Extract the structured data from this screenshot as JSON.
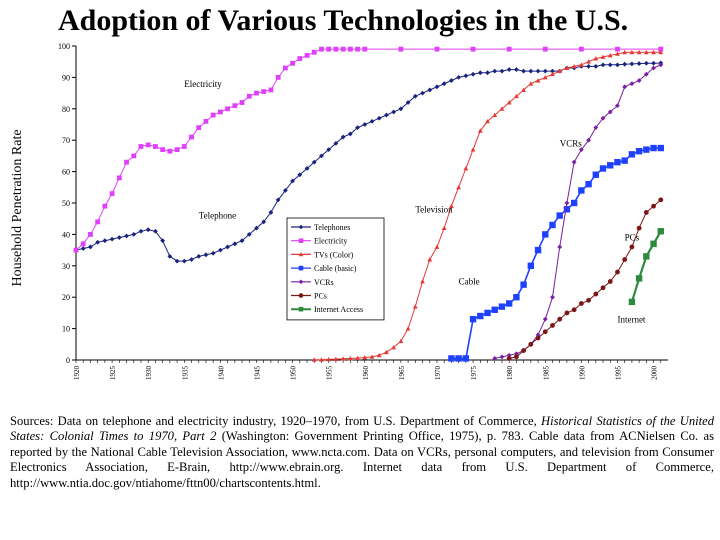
{
  "title": "Adoption of Various Technologies in the U.S.",
  "chart_data": {
    "type": "line",
    "ylabel": "Household Penetration Rate",
    "xlabel": "",
    "xlim": [
      1920,
      2002
    ],
    "ylim": [
      0,
      100
    ],
    "yticks": [
      "0",
      "10",
      "20",
      "30",
      "40",
      "50",
      "60",
      "70",
      "80",
      "90",
      "100"
    ],
    "xticks": [
      "1920",
      "1925",
      "1930",
      "1935",
      "1940",
      "1945",
      "1950",
      "1955",
      "1960",
      "1965",
      "1970",
      "1975",
      "1980",
      "1985",
      "1990",
      "1995",
      "2000"
    ],
    "legend_placement": "center",
    "grid": false,
    "series": [
      {
        "name": "Telephones",
        "color": "#1a237e",
        "marker": "diamond",
        "x": [
          1920,
          1921,
          1922,
          1923,
          1924,
          1925,
          1926,
          1927,
          1928,
          1929,
          1930,
          1931,
          1932,
          1933,
          1934,
          1935,
          1936,
          1937,
          1938,
          1939,
          1940,
          1941,
          1942,
          1943,
          1944,
          1945,
          1946,
          1947,
          1948,
          1949,
          1950,
          1951,
          1952,
          1953,
          1954,
          1955,
          1956,
          1957,
          1958,
          1959,
          1960,
          1961,
          1962,
          1963,
          1964,
          1965,
          1966,
          1967,
          1968,
          1969,
          1970,
          1971,
          1972,
          1973,
          1974,
          1975,
          1976,
          1977,
          1978,
          1979,
          1980,
          1981,
          1982,
          1983,
          1984,
          1985,
          1986,
          1987,
          1988,
          1989,
          1990,
          1991,
          1992,
          1993,
          1994,
          1995,
          1996,
          1997,
          1998,
          1999,
          2000,
          2001
        ],
        "y": [
          35,
          35.5,
          36,
          37.5,
          38,
          38.5,
          39,
          39.5,
          40,
          41,
          41.5,
          41,
          38,
          33,
          31.5,
          31.5,
          32,
          33,
          33.5,
          34,
          35,
          36,
          37,
          38,
          40,
          42,
          44,
          47,
          51,
          54,
          57,
          59,
          61,
          63,
          65,
          67,
          69,
          71,
          72,
          74,
          75,
          76,
          77,
          78,
          79,
          80,
          82,
          84,
          85,
          86,
          87,
          88,
          89,
          90,
          90.5,
          91,
          91.5,
          91.5,
          92,
          92,
          92.5,
          92.5,
          92,
          92,
          92,
          92,
          92,
          92,
          93,
          93,
          93.5,
          93.5,
          93.5,
          94,
          94,
          94,
          94.2,
          94.3,
          94.4,
          94.5,
          94.5,
          94.6
        ]
      },
      {
        "name": "Electricity",
        "color": "#e040fb",
        "marker": "square",
        "x": [
          1920,
          1921,
          1922,
          1923,
          1924,
          1925,
          1926,
          1927,
          1928,
          1929,
          1930,
          1931,
          1932,
          1933,
          1934,
          1935,
          1936,
          1937,
          1938,
          1939,
          1940,
          1941,
          1942,
          1943,
          1944,
          1945,
          1946,
          1947,
          1948,
          1949,
          1950,
          1951,
          1952,
          1953,
          1954,
          1955,
          1956,
          1957,
          1958,
          1959,
          1960,
          1965,
          1970,
          1975,
          1980,
          1985,
          1990,
          1995,
          2001
        ],
        "y": [
          35,
          37,
          40,
          44,
          49,
          53,
          58,
          63,
          65,
          68,
          68.5,
          68,
          67,
          66.5,
          67,
          68,
          71,
          74,
          76,
          78,
          79,
          80,
          81,
          82,
          84,
          85,
          85.5,
          86,
          90,
          93,
          94.5,
          96,
          97,
          98,
          99,
          99,
          99,
          99,
          99,
          99,
          99,
          99,
          99,
          99,
          99,
          99,
          99,
          99,
          99
        ]
      },
      {
        "name": "TVs (Color)",
        "color": "#e53935",
        "marker": "triangle",
        "x": [
          1953,
          1954,
          1955,
          1956,
          1957,
          1958,
          1959,
          1960,
          1961,
          1962,
          1963,
          1964,
          1965,
          1966,
          1967,
          1968,
          1969,
          1970,
          1971,
          1972,
          1973,
          1974,
          1975,
          1976,
          1977,
          1978,
          1979,
          1980,
          1981,
          1982,
          1983,
          1984,
          1985,
          1986,
          1987,
          1988,
          1989,
          1990,
          1991,
          1992,
          1993,
          1994,
          1995,
          1996,
          1997,
          1998,
          1999,
          2000,
          2001
        ],
        "y": [
          0.1,
          0.1,
          0.2,
          0.3,
          0.4,
          0.5,
          0.6,
          0.8,
          1,
          1.5,
          2.5,
          4,
          6,
          10,
          17,
          25,
          32,
          36,
          42,
          49,
          55,
          61,
          67,
          73,
          76,
          78,
          80,
          82,
          84,
          86,
          88,
          89,
          90,
          91,
          92,
          93,
          93.5,
          94,
          95,
          96,
          96.5,
          97,
          97.5,
          98,
          98,
          98,
          98,
          98,
          98
        ]
      },
      {
        "name": "Cable (basic)",
        "color": "#1e40ff",
        "marker": "square",
        "x": [
          1972,
          1973,
          1974,
          1975,
          1976,
          1977,
          1978,
          1979,
          1980,
          1981,
          1982,
          1983,
          1984,
          1985,
          1986,
          1987,
          1988,
          1989,
          1990,
          1991,
          1992,
          1993,
          1994,
          1995,
          1996,
          1997,
          1998,
          1999,
          2000,
          2001
        ],
        "y": [
          0.5,
          0.5,
          0.5,
          13,
          14,
          15,
          16,
          17,
          18,
          20,
          24,
          30,
          35,
          40,
          43,
          46,
          48,
          50,
          54,
          56,
          59,
          61,
          62,
          63,
          63.5,
          65.5,
          66.5,
          67,
          67.5,
          67.5
        ]
      },
      {
        "name": "VCRs",
        "color": "#7b1fa2",
        "marker": "diamond",
        "x": [
          1978,
          1979,
          1980,
          1981,
          1982,
          1983,
          1984,
          1985,
          1986,
          1987,
          1988,
          1989,
          1990,
          1991,
          1992,
          1993,
          1994,
          1995,
          1996,
          1997,
          1998,
          1999,
          2000,
          2001
        ],
        "y": [
          0.5,
          1,
          1.5,
          2,
          3,
          5,
          8,
          13,
          20,
          36,
          50,
          63,
          67,
          70,
          74,
          77,
          79,
          81,
          87,
          88,
          89,
          91,
          93,
          94
        ]
      },
      {
        "name": "PCs",
        "color": "#7b1616",
        "marker": "circle",
        "x": [
          1980,
          1981,
          1982,
          1983,
          1984,
          1985,
          1986,
          1987,
          1988,
          1989,
          1990,
          1991,
          1992,
          1993,
          1994,
          1995,
          1996,
          1997,
          1998,
          1999,
          2000,
          2001
        ],
        "y": [
          0.5,
          1,
          3,
          5,
          7,
          9,
          11,
          13,
          15,
          16,
          18,
          19,
          21,
          23,
          25,
          28,
          32,
          36,
          42,
          47,
          49,
          51
        ]
      },
      {
        "name": "Internet Access",
        "color": "#2e8b3e",
        "marker": "square",
        "x": [
          1997,
          1998,
          1999,
          2000,
          2001
        ],
        "y": [
          18.5,
          26,
          33,
          37,
          41
        ]
      }
    ],
    "annotations": [
      {
        "text": "Electricity",
        "x": 1935,
        "y": 87
      },
      {
        "text": "Telephone",
        "x": 1937,
        "y": 45
      },
      {
        "text": "Television",
        "x": 1967,
        "y": 47
      },
      {
        "text": "VCRs",
        "x": 1987,
        "y": 68
      },
      {
        "text": "PCs",
        "x": 1996,
        "y": 38
      },
      {
        "text": "Cable",
        "x": 1973,
        "y": 24
      },
      {
        "text": "Internet",
        "x": 1995,
        "y": 12
      }
    ]
  },
  "sources": {
    "part1": "Sources: Data on telephone and electricity industry, 1920–1970, from U.S. Department of Commerce, ",
    "italic": "Historical Statistics of the United States: Colonial Times to 1970, Part 2",
    "part2": " (Washington: Government Printing Office, 1975), p. 783. Cable data from ACNielsen Co. as reported by the National Cable Television Association, www.ncta.com. Data on VCRs, personal computers, and television from Consumer Electronics Association, E-Brain, http://www.ebrain.org. Internet data from U.S. Department of Commerce, http://www.ntia.doc.gov/ntiahome/fttn00/chartscontents.html."
  }
}
